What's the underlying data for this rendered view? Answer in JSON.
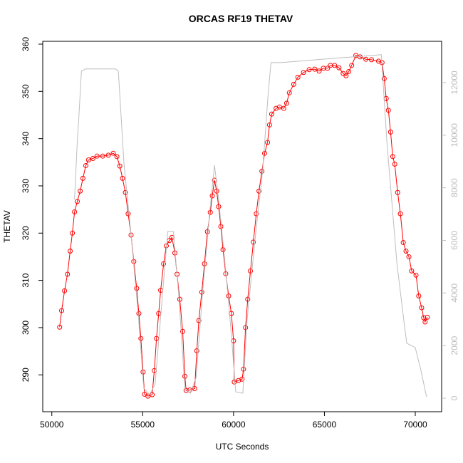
{
  "chart_data": {
    "type": "line",
    "title": "ORCAS RF19 THETAV",
    "x_label": "UTC Seconds",
    "y_label": "THETAV",
    "xlim": [
      49500,
      71450
    ],
    "ylim": [
      282.2,
      360.6
    ],
    "y2lim": [
      -515,
      13570
    ],
    "xticks": [
      50000,
      55000,
      60000,
      65000,
      70000
    ],
    "yticks": [
      290,
      300,
      310,
      320,
      330,
      340,
      350,
      360
    ],
    "y2ticks": [
      0,
      2000,
      4000,
      6000,
      8000,
      10000,
      12000
    ],
    "y2_color": "#bebebe",
    "series": [
      {
        "color": "#ff0000",
        "marker": "circle",
        "x": [
          50430,
          50540,
          50700,
          50860,
          51010,
          51130,
          51250,
          51400,
          51560,
          51710,
          51870,
          52020,
          52260,
          52490,
          52800,
          53110,
          53380,
          53580,
          53740,
          53890,
          54050,
          54200,
          54360,
          54510,
          54670,
          54790,
          54900,
          55020,
          55100,
          55290,
          55520,
          55640,
          55760,
          55880,
          55990,
          56150,
          56300,
          56460,
          56610,
          56770,
          56890,
          57040,
          57200,
          57320,
          57390,
          57590,
          57860,
          57980,
          58090,
          58250,
          58400,
          58560,
          58720,
          58830,
          58950,
          59070,
          59180,
          59300,
          59420,
          59570,
          59730,
          59880,
          60000,
          60040,
          60270,
          60470,
          60550,
          60660,
          60780,
          60930,
          61090,
          61250,
          61400,
          61560,
          61710,
          61870,
          61980,
          62100,
          62340,
          62530,
          62760,
          62920,
          63070,
          63310,
          63540,
          63850,
          64160,
          64470,
          64710,
          64940,
          65170,
          65330,
          65560,
          65800,
          66030,
          66190,
          66340,
          66500,
          66730,
          66960,
          67280,
          67590,
          67980,
          68170,
          68290,
          68400,
          68520,
          68640,
          68760,
          68870,
          69030,
          69180,
          69340,
          69490,
          69650,
          69800,
          70040,
          70190,
          70350,
          70460,
          70540,
          70660
        ],
        "values": [
          300.1,
          303.6,
          307.8,
          311.3,
          316.2,
          320,
          324.5,
          326.7,
          328.9,
          331.6,
          334.3,
          335.5,
          335.8,
          336.3,
          336.3,
          336.5,
          336.9,
          336.2,
          334.2,
          331.6,
          328.6,
          324.1,
          319.6,
          314,
          308.3,
          303,
          297.7,
          290.6,
          285.9,
          285.5,
          285.8,
          290.9,
          297.7,
          303,
          307.9,
          313.5,
          317.3,
          318.4,
          319.1,
          315.8,
          311.3,
          306,
          299.2,
          289.7,
          286.7,
          286.8,
          287.1,
          295.1,
          301.5,
          307.5,
          313.5,
          320.3,
          324.4,
          327.9,
          331.2,
          328.9,
          325.6,
          321.4,
          316.5,
          311.4,
          306.7,
          303,
          297.2,
          288.5,
          288.8,
          289.1,
          291.2,
          300,
          306,
          312,
          318.1,
          324.1,
          328.9,
          333.1,
          336.9,
          339.2,
          342.9,
          345.2,
          346.4,
          346.7,
          346.4,
          347.5,
          349.7,
          351.5,
          353,
          354,
          354.6,
          354.7,
          354.3,
          354.9,
          354.9,
          355.5,
          355.5,
          355,
          353.8,
          353.3,
          354.2,
          355.5,
          357.6,
          357.3,
          356.8,
          356.7,
          356.4,
          356.1,
          352.7,
          348.5,
          346,
          341.4,
          336.2,
          334.6,
          328.6,
          324.1,
          318,
          316.2,
          315,
          312,
          311.1,
          306.7,
          304.2,
          302.1,
          301.2,
          302.2
        ]
      },
      {
        "color": "#bebebe",
        "axis": "y2",
        "x": [
          51250,
          51400,
          51480,
          51630,
          51870,
          53500,
          53660,
          53970,
          54360,
          54750,
          55060,
          55370,
          55680,
          56070,
          56380,
          56690,
          57000,
          57320,
          57630,
          57940,
          58330,
          58720,
          58950,
          59180,
          59570,
          59880,
          60120,
          60510,
          60740,
          61210,
          61600,
          61910,
          62060,
          62610,
          65640,
          68130,
          68440,
          68990,
          69380,
          69530,
          70000,
          70310,
          70620
        ],
        "values": [
          7560,
          9730,
          10600,
          12440,
          12520,
          12520,
          12440,
          8920,
          6210,
          3220,
          380,
          140,
          510,
          3770,
          6340,
          6340,
          3770,
          380,
          190,
          790,
          4310,
          7290,
          8860,
          7560,
          4850,
          2410,
          240,
          190,
          2950,
          6210,
          8640,
          11630,
          12760,
          12760,
          12930,
          13060,
          9730,
          5120,
          2900,
          2090,
          1920,
          1060,
          50
        ]
      }
    ]
  }
}
